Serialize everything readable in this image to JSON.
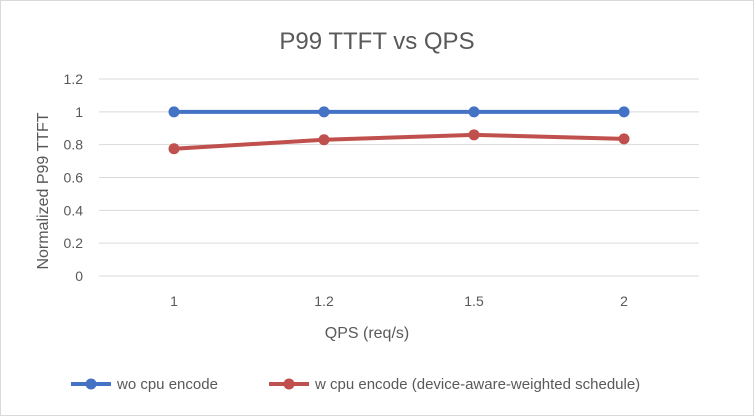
{
  "chart_data": {
    "type": "line",
    "title": "P99 TTFT vs QPS",
    "xlabel": "QPS (req/s)",
    "ylabel": "Normalized P99 TTFT",
    "categories": [
      "1",
      "1.2",
      "1.5",
      "2"
    ],
    "ylim": [
      0,
      1.2
    ],
    "yticks": [
      "0",
      "0.2",
      "0.4",
      "0.6",
      "0.8",
      "1",
      "1.2"
    ],
    "grid": true,
    "legend_position": "bottom",
    "series": [
      {
        "name": "wo cpu encode",
        "values": [
          1,
          1,
          1,
          1
        ],
        "color": "#4472c4"
      },
      {
        "name": "w cpu encode (device-aware-weighted schedule)",
        "values": [
          0.775,
          0.83,
          0.86,
          0.835
        ],
        "color": "#c0504d"
      }
    ]
  }
}
